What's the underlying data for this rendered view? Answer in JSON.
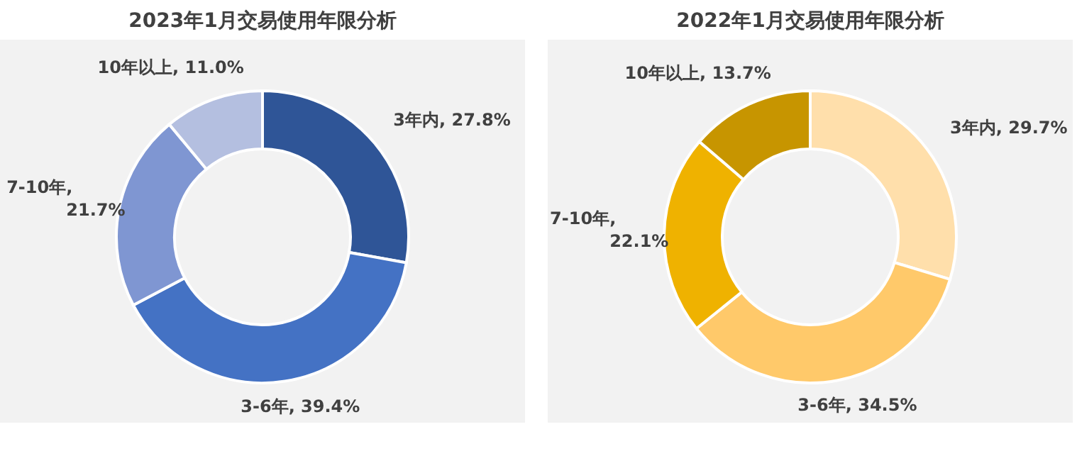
{
  "chart_data": [
    {
      "type": "donut",
      "title": "2023年1月交易使用年限分析",
      "categories": [
        "3年内",
        "3-6年",
        "7-10年",
        "10年以上"
      ],
      "values": [
        27.8,
        39.4,
        21.7,
        11.0
      ],
      "colors": [
        "#2f5597",
        "#4472c4",
        "#7f96d2",
        "#b4bfe0"
      ],
      "value_labels": [
        ", 27.8%",
        ", 39.4%",
        ",\n21.7%",
        ", 11.0%"
      ],
      "legend": false
    },
    {
      "type": "donut",
      "title": "2022年1月交易使用年限分析",
      "categories": [
        "3年内",
        "3-6年",
        "7-10年",
        "10年以上"
      ],
      "values": [
        29.7,
        34.5,
        22.1,
        13.7
      ],
      "colors": [
        "#ffdfab",
        "#ffc96a",
        "#efb200",
        "#c79500"
      ],
      "value_labels": [
        ", 29.7%",
        ", 34.5%",
        ",\n22.1%",
        ", 13.7%"
      ],
      "legend": false
    }
  ]
}
